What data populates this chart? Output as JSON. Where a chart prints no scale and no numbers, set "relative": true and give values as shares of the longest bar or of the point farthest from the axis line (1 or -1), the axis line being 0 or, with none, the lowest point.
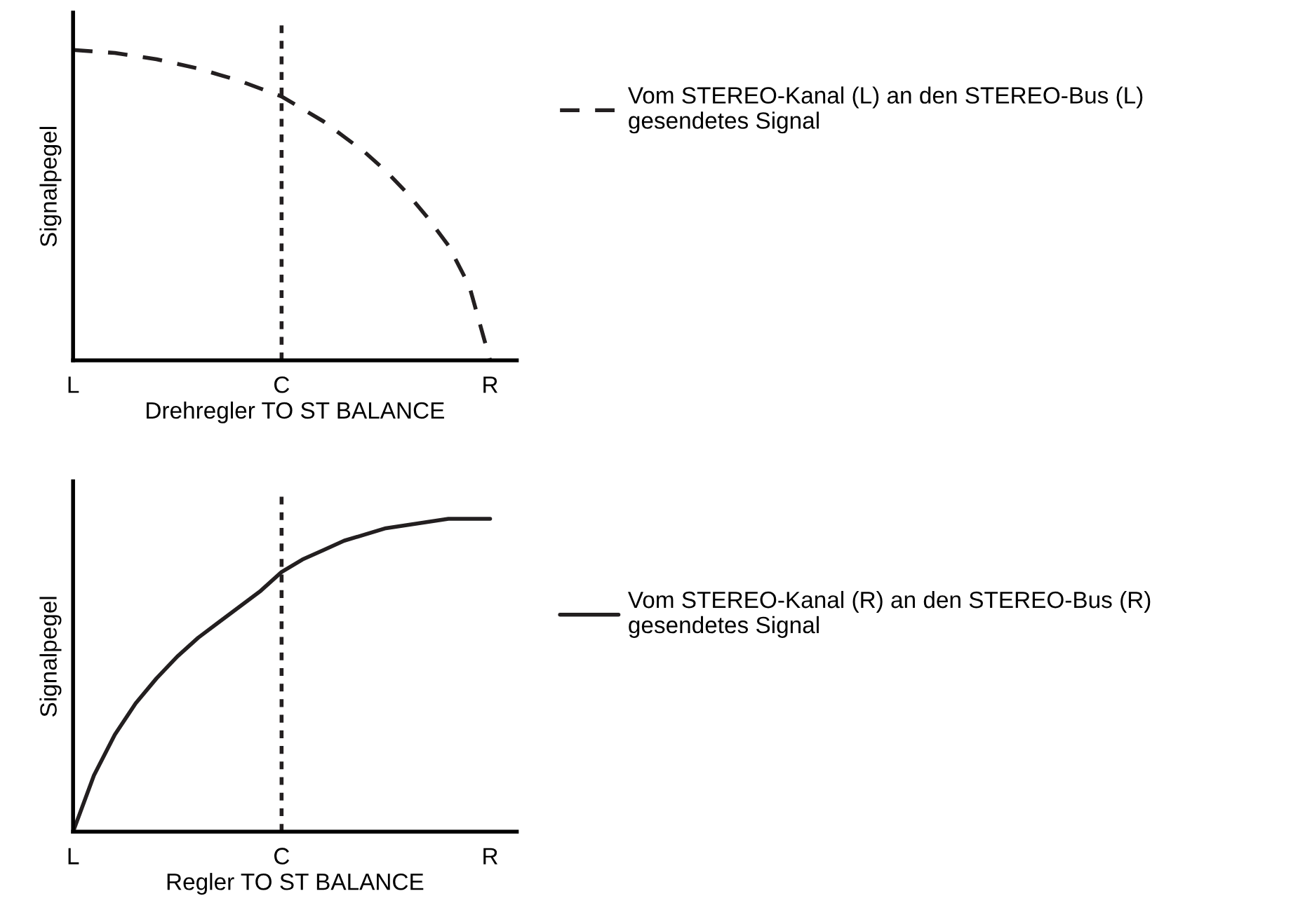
{
  "chart_data": [
    {
      "type": "line",
      "relative": true,
      "xlabel": "Drehregler TO ST BALANCE",
      "ylabel": "Signalpegel",
      "line_style": "dashed",
      "legend": "right",
      "categories": [
        "L",
        null,
        null,
        null,
        null,
        null,
        null,
        null,
        null,
        null,
        "C",
        null,
        null,
        null,
        null,
        null,
        null,
        null,
        null,
        null,
        "R"
      ],
      "series": [
        {
          "name": "Vom STEREO-Kanal (L) an den STEREO-Bus (L)\ngesendetes Signal",
          "color": "#231f20",
          "values": [
            1.0,
            0.995,
            0.99,
            0.98,
            0.97,
            0.955,
            0.94,
            0.92,
            0.9,
            0.875,
            0.85,
            0.81,
            0.77,
            0.72,
            0.67,
            0.61,
            0.54,
            0.46,
            0.37,
            0.24,
            0.0
          ]
        }
      ],
      "ref_lines": [
        {
          "axis": "x",
          "value": "C",
          "line_style": "dotted",
          "color": "#231f20"
        }
      ]
    },
    {
      "type": "line",
      "relative": true,
      "xlabel": "Regler TO ST BALANCE",
      "ylabel": "Signalpegel",
      "line_style": "solid",
      "legend": "right",
      "categories": [
        "L",
        null,
        null,
        null,
        null,
        null,
        null,
        null,
        null,
        null,
        "C",
        null,
        null,
        null,
        null,
        null,
        null,
        null,
        null,
        null,
        "R"
      ],
      "series": [
        {
          "name": "Vom STEREO-Kanal (R) an den STEREO-Bus (R)\ngesendetes Signal",
          "color": "#231f20",
          "values": [
            0.0,
            0.18,
            0.31,
            0.41,
            0.49,
            0.56,
            0.62,
            0.67,
            0.72,
            0.77,
            0.83,
            0.87,
            0.9,
            0.93,
            0.95,
            0.97,
            0.98,
            0.99,
            1.0,
            1.0,
            1.0
          ]
        }
      ],
      "ref_lines": [
        {
          "axis": "x",
          "value": "C",
          "line_style": "dotted",
          "color": "#231f20"
        }
      ]
    }
  ]
}
